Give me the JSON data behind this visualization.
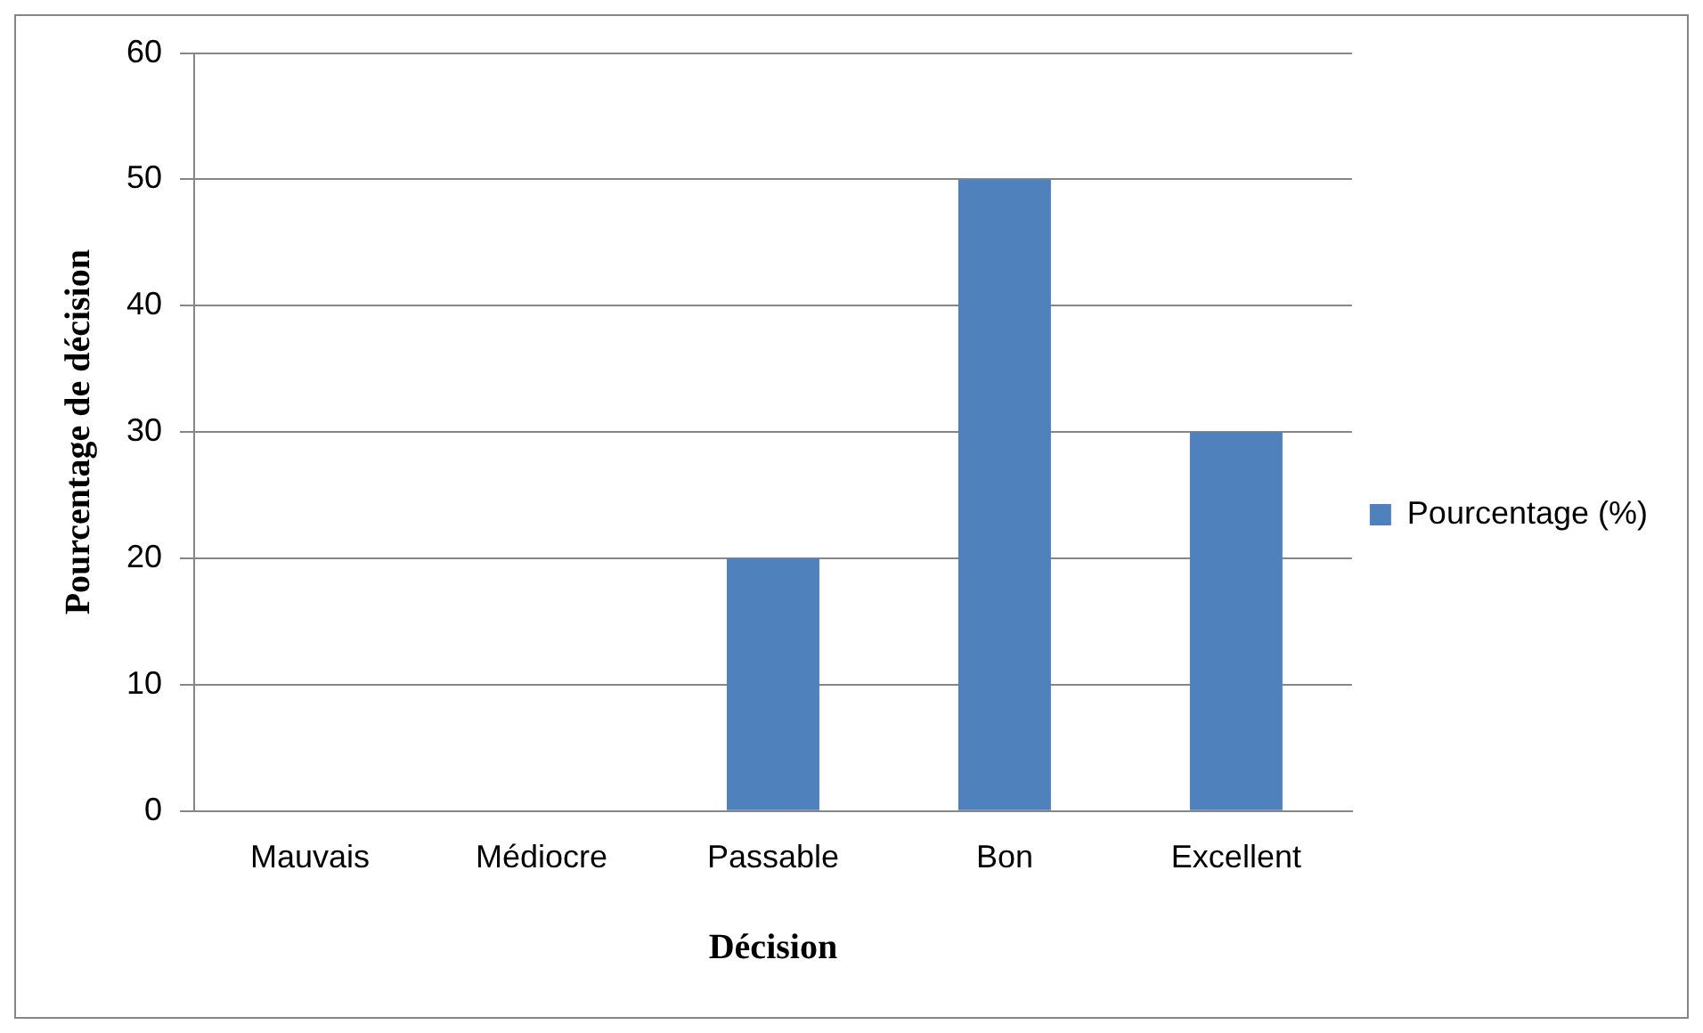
{
  "chart_data": {
    "type": "bar",
    "xlabel": "Décision",
    "ylabel": "Pourcentage de décision",
    "categories": [
      "Mauvais",
      "Médiocre",
      "Passable",
      "Bon",
      "Excellent"
    ],
    "series": [
      {
        "name": "Pourcentage (%)",
        "color": "#4f81bd",
        "values": [
          0,
          0,
          20,
          50,
          30
        ]
      }
    ],
    "ylim": [
      0,
      60
    ],
    "yticks": [
      0,
      10,
      20,
      30,
      40,
      50,
      60
    ],
    "grid": "y",
    "legend": "right"
  }
}
